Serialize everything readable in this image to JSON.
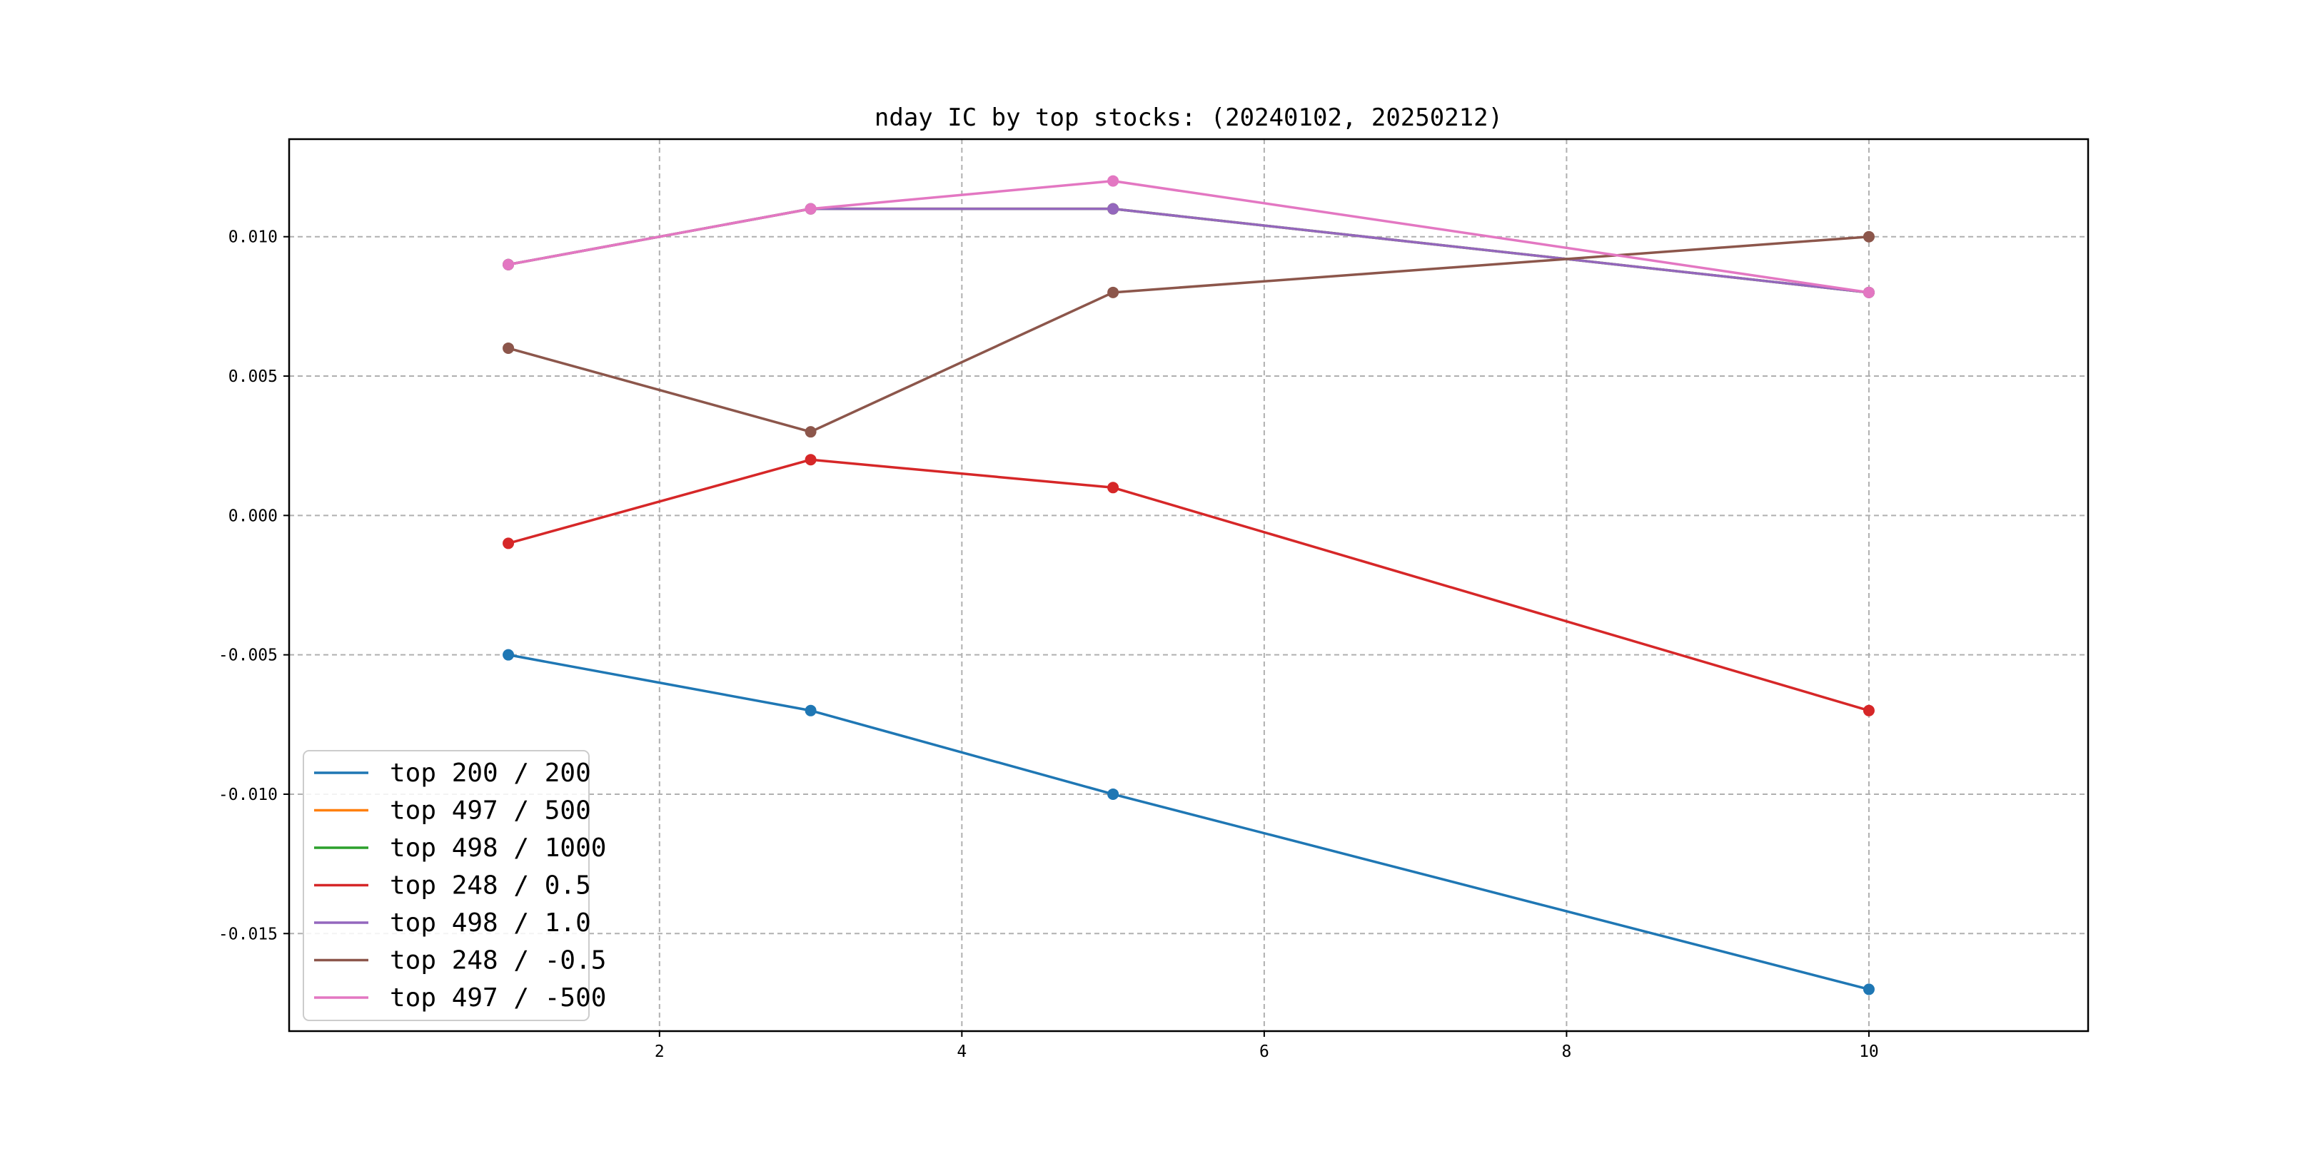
{
  "chart_data": {
    "type": "line",
    "title": "nday IC by top stocks: (20240102, 20250212)",
    "xlabel": "",
    "ylabel": "",
    "x": [
      1,
      3,
      5,
      10
    ],
    "xlim": [
      -0.45,
      11.45
    ],
    "ylim": [
      -0.0185,
      0.0135
    ],
    "xticks": [
      2,
      4,
      6,
      8,
      10
    ],
    "xtick_labels": [
      "2",
      "4",
      "6",
      "8",
      "10"
    ],
    "yticks": [
      -0.015,
      -0.01,
      -0.005,
      0.0,
      0.005,
      0.01
    ],
    "ytick_labels": [
      "-0.015",
      "-0.010",
      "-0.005",
      "0.000",
      "0.005",
      "0.010"
    ],
    "grid": true,
    "legend_position": "lower-left",
    "series": [
      {
        "name": "top 200 / 200",
        "color": "#1f77b4",
        "values": [
          -0.005,
          -0.007,
          -0.01,
          -0.017
        ]
      },
      {
        "name": "top 497 / 500",
        "color": "#ff7f0e",
        "values": [
          0.009,
          0.011,
          0.011,
          0.008
        ]
      },
      {
        "name": "top 498 / 1000",
        "color": "#2ca02c",
        "values": [
          0.009,
          0.011,
          0.011,
          0.008
        ]
      },
      {
        "name": "top 248 / 0.5",
        "color": "#d62728",
        "values": [
          -0.001,
          0.002,
          0.001,
          -0.007
        ]
      },
      {
        "name": "top 498 / 1.0",
        "color": "#9467bd",
        "values": [
          0.009,
          0.011,
          0.011,
          0.008
        ]
      },
      {
        "name": "top 248 / -0.5",
        "color": "#8c564b",
        "values": [
          0.006,
          0.003,
          0.008,
          0.01
        ]
      },
      {
        "name": "top 497 / -500",
        "color": "#e377c2",
        "values": [
          0.009,
          0.011,
          0.012,
          0.008
        ]
      }
    ]
  }
}
